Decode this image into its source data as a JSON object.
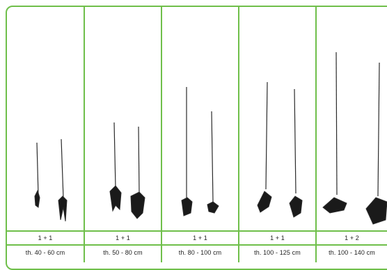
{
  "columns": [
    {
      "age": "1 + 1",
      "height": "th. 40 - 60 cm"
    },
    {
      "age": "1 + 1",
      "height": "th. 50 - 80 cm"
    },
    {
      "age": "1 + 1",
      "height": "th. 80 - 100 cm"
    },
    {
      "age": "1 + 1",
      "height": "th. 100 - 125 cm"
    },
    {
      "age": "1 + 2",
      "height": "th. 100 - 140 cm"
    }
  ],
  "colors": {
    "border": "#6fbf4a",
    "plant": "#2b2b2b",
    "root": "#1a1a1a"
  }
}
